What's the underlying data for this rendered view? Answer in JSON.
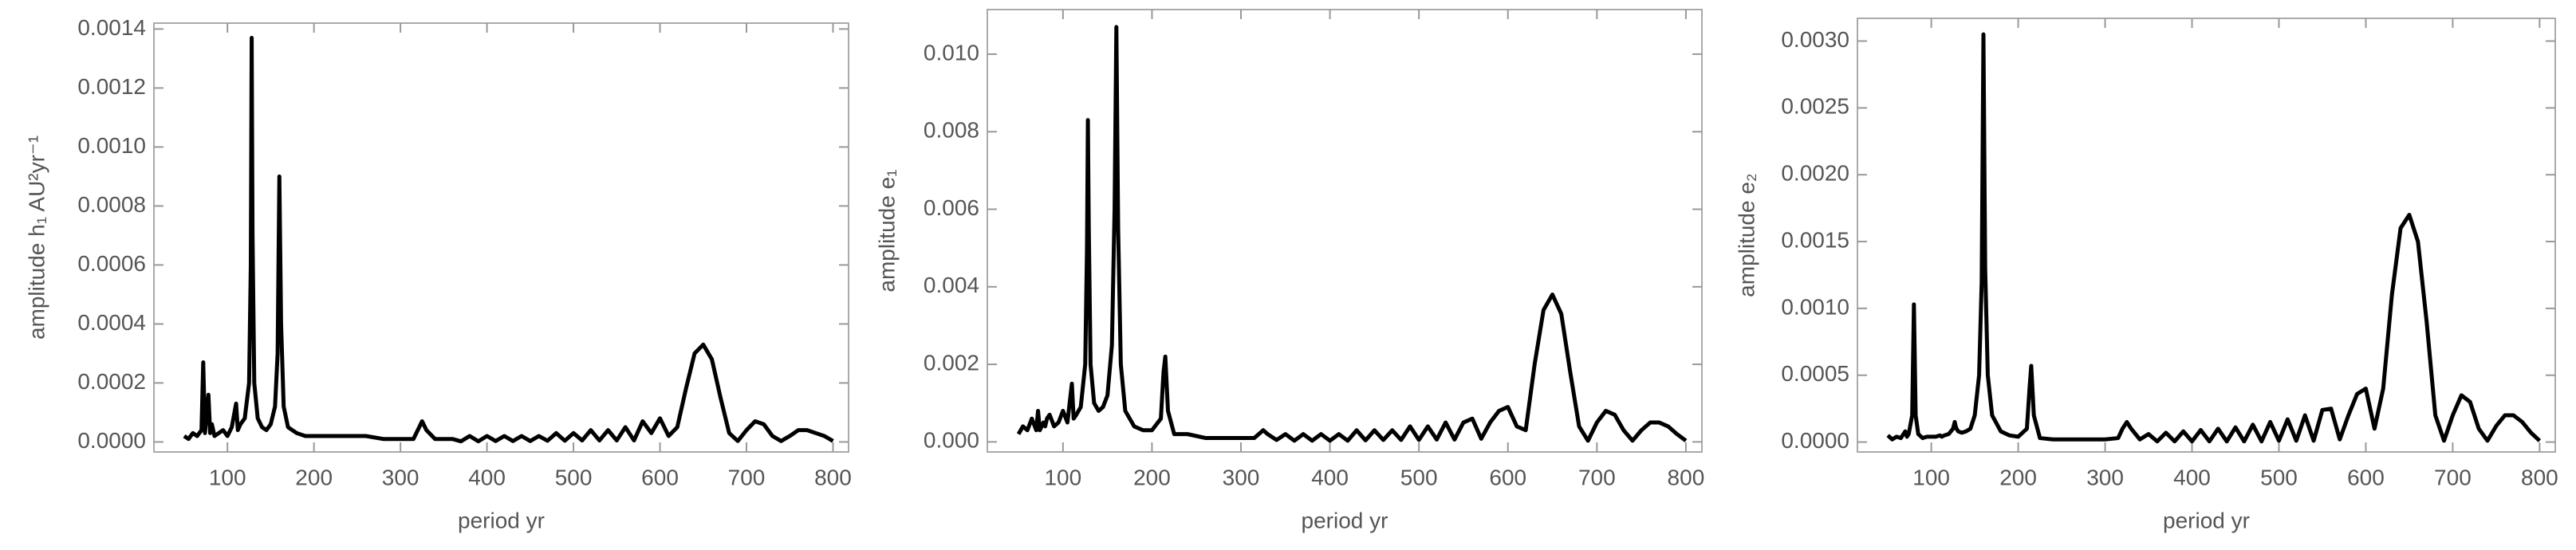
{
  "chart_data": [
    {
      "type": "line",
      "xlabel": "period yr",
      "ylabel": "amplitude h₁ AU²yr⁻¹",
      "xlim": [
        15,
        818
      ],
      "ylim": [
        -3.4e-05,
        0.00142
      ],
      "xticks": [
        100,
        200,
        300,
        400,
        500,
        600,
        700,
        800
      ],
      "yticks": [
        {
          "value": 0,
          "label": "0.0000"
        },
        {
          "value": 0.0002,
          "label": "0.0002"
        },
        {
          "value": 0.0004,
          "label": "0.0004"
        },
        {
          "value": 0.0006,
          "label": "0.0006"
        },
        {
          "value": 0.0008,
          "label": "0.0008"
        },
        {
          "value": 0.001,
          "label": "0.0010"
        },
        {
          "value": 0.0012,
          "label": "0.0012"
        },
        {
          "value": 0.0014,
          "label": "0.0014"
        }
      ],
      "color": "#000000",
      "x": [
        50,
        55,
        60,
        65,
        70,
        72,
        74,
        78,
        80,
        82,
        85,
        90,
        95,
        100,
        105,
        110,
        112,
        115,
        120,
        125,
        127,
        128,
        129,
        131,
        135,
        140,
        145,
        150,
        155,
        158,
        160,
        162,
        165,
        170,
        180,
        190,
        200,
        210,
        213,
        215,
        218,
        225,
        240,
        260,
        280,
        300,
        315,
        320,
        325,
        330,
        340,
        350,
        360,
        370,
        380,
        390,
        400,
        410,
        420,
        430,
        440,
        450,
        460,
        470,
        480,
        490,
        500,
        510,
        520,
        530,
        540,
        550,
        560,
        570,
        580,
        590,
        600,
        610,
        620,
        630,
        640,
        650,
        660,
        670,
        680,
        690,
        700,
        710,
        720,
        730,
        740,
        750,
        760,
        770,
        780,
        790,
        800
      ],
      "values": [
        2e-05,
        1e-05,
        3e-05,
        2e-05,
        4e-05,
        0.00027,
        3e-05,
        0.00016,
        3e-05,
        6e-05,
        2e-05,
        3e-05,
        4e-05,
        2e-05,
        5e-05,
        0.00013,
        4e-05,
        6e-05,
        8e-05,
        0.0002,
        0.0006,
        0.00137,
        0.0007,
        0.0002,
        8e-05,
        5e-05,
        4e-05,
        6e-05,
        0.00012,
        0.0003,
        0.0009,
        0.0004,
        0.00012,
        5e-05,
        3e-05,
        2e-05,
        2e-05,
        2e-05,
        2e-05,
        2e-05,
        2e-05,
        2e-05,
        2e-05,
        2e-05,
        1e-05,
        1e-05,
        1e-05,
        4e-05,
        7e-05,
        4e-05,
        1e-05,
        1e-05,
        1e-05,
        2e-06,
        2e-05,
        2e-06,
        2e-05,
        3e-06,
        2e-05,
        3e-06,
        2e-05,
        3e-06,
        2e-05,
        4e-06,
        3e-05,
        4e-06,
        3e-05,
        5e-06,
        4e-05,
        5e-06,
        4e-05,
        5e-06,
        5e-05,
        5e-06,
        7e-05,
        3e-05,
        8e-05,
        2e-05,
        5e-05,
        0.00018,
        0.0003,
        0.00033,
        0.00028,
        0.00015,
        3e-05,
        3e-06,
        4e-05,
        7e-05,
        6e-05,
        2e-05,
        3e-06,
        2e-05,
        4e-05,
        4e-05,
        3e-05,
        2e-05,
        3e-06
      ]
    },
    {
      "type": "line",
      "xlabel": "period yr",
      "ylabel": "amplitude e₁",
      "xlim": [
        15,
        818
      ],
      "ylim": [
        -0.00026,
        0.01115
      ],
      "xticks": [
        100,
        200,
        300,
        400,
        500,
        600,
        700,
        800
      ],
      "yticks": [
        {
          "value": 0,
          "label": "0.000"
        },
        {
          "value": 0.002,
          "label": "0.002"
        },
        {
          "value": 0.004,
          "label": "0.004"
        },
        {
          "value": 0.006,
          "label": "0.006"
        },
        {
          "value": 0.008,
          "label": "0.008"
        },
        {
          "value": 0.01,
          "label": "0.010"
        }
      ],
      "color": "#000000",
      "x": [
        50,
        55,
        60,
        65,
        70,
        72,
        74,
        78,
        80,
        82,
        85,
        90,
        95,
        100,
        105,
        110,
        112,
        115,
        120,
        125,
        127,
        128,
        129,
        131,
        135,
        140,
        145,
        150,
        155,
        158,
        160,
        162,
        165,
        170,
        180,
        190,
        200,
        210,
        213,
        215,
        218,
        225,
        240,
        260,
        280,
        300,
        315,
        320,
        325,
        330,
        340,
        350,
        360,
        370,
        380,
        390,
        400,
        410,
        420,
        430,
        440,
        450,
        460,
        470,
        480,
        490,
        500,
        510,
        520,
        530,
        540,
        550,
        560,
        570,
        580,
        590,
        600,
        610,
        620,
        630,
        640,
        650,
        660,
        670,
        680,
        690,
        700,
        710,
        720,
        730,
        740,
        750,
        760,
        770,
        780,
        790,
        800
      ],
      "values": [
        0.0002,
        0.0004,
        0.0003,
        0.0006,
        0.0003,
        0.0008,
        0.0003,
        0.0005,
        0.0004,
        0.0006,
        0.0007,
        0.0004,
        0.0005,
        0.0008,
        0.0005,
        0.0015,
        0.0006,
        0.0007,
        0.0009,
        0.002,
        0.005,
        0.0083,
        0.0055,
        0.002,
        0.001,
        0.0008,
        0.0009,
        0.0012,
        0.0025,
        0.006,
        0.0107,
        0.0055,
        0.002,
        0.0008,
        0.0004,
        0.0003,
        0.0003,
        0.0006,
        0.0018,
        0.0022,
        0.0008,
        0.0002,
        0.0002,
        0.0001,
        0.0001,
        0.0001,
        0.0001,
        0.0002,
        0.0003,
        0.0002,
        5e-05,
        0.0002,
        3e-05,
        0.0002,
        3e-05,
        0.0002,
        3e-05,
        0.0002,
        3e-05,
        0.0003,
        4e-05,
        0.0003,
        5e-05,
        0.0003,
        5e-05,
        0.0004,
        5e-05,
        0.0004,
        6e-05,
        0.0005,
        6e-05,
        0.0005,
        0.0006,
        8e-05,
        0.0005,
        0.0008,
        0.0009,
        0.0004,
        0.0003,
        0.002,
        0.0034,
        0.0038,
        0.0033,
        0.0018,
        0.0004,
        3e-05,
        0.0005,
        0.0008,
        0.0007,
        0.0003,
        3e-05,
        0.0003,
        0.0005,
        0.0005,
        0.0004,
        0.0002,
        3e-05
      ]
    },
    {
      "type": "line",
      "xlabel": "period yr",
      "ylabel": "amplitude e₂",
      "xlim": [
        15,
        818
      ],
      "ylim": [
        -7.4e-05,
        0.00317
      ],
      "xticks": [
        100,
        200,
        300,
        400,
        500,
        600,
        700,
        800
      ],
      "yticks": [
        {
          "value": 0,
          "label": "0.0000"
        },
        {
          "value": 0.0005,
          "label": "0.0005"
        },
        {
          "value": 0.001,
          "label": "0.0010"
        },
        {
          "value": 0.0015,
          "label": "0.0015"
        },
        {
          "value": 0.002,
          "label": "0.0020"
        },
        {
          "value": 0.0025,
          "label": "0.0025"
        },
        {
          "value": 0.003,
          "label": "0.0030"
        }
      ],
      "color": "#000000",
      "x": [
        50,
        55,
        60,
        65,
        70,
        72,
        74,
        78,
        80,
        82,
        85,
        90,
        95,
        100,
        105,
        110,
        112,
        115,
        120,
        125,
        127,
        128,
        129,
        131,
        135,
        140,
        145,
        150,
        155,
        158,
        160,
        162,
        165,
        170,
        180,
        190,
        200,
        210,
        213,
        215,
        218,
        225,
        240,
        260,
        280,
        300,
        315,
        320,
        325,
        330,
        340,
        350,
        360,
        370,
        380,
        390,
        400,
        410,
        420,
        430,
        440,
        450,
        460,
        470,
        480,
        490,
        500,
        510,
        520,
        530,
        540,
        550,
        560,
        570,
        580,
        590,
        600,
        610,
        620,
        630,
        640,
        650,
        660,
        670,
        680,
        690,
        700,
        710,
        720,
        730,
        740,
        750,
        760,
        770,
        780,
        790,
        800
      ],
      "values": [
        5e-05,
        2e-05,
        4e-05,
        3e-05,
        8e-05,
        4e-05,
        6e-05,
        0.0002,
        0.00103,
        0.0002,
        6e-05,
        3e-05,
        4e-05,
        4e-05,
        4e-05,
        5e-05,
        4e-05,
        5e-05,
        6e-05,
        0.0001,
        0.00015,
        0.00012,
        0.0001,
        8e-05,
        7e-05,
        8e-05,
        0.0001,
        0.0002,
        0.0005,
        0.0012,
        0.00305,
        0.0013,
        0.0005,
        0.0002,
        8e-05,
        5e-05,
        4e-05,
        0.0001,
        0.0004,
        0.00057,
        0.0002,
        3e-05,
        2e-05,
        2e-05,
        2e-05,
        2e-05,
        3e-05,
        0.0001,
        0.00015,
        0.0001,
        2e-05,
        6e-05,
        5e-06,
        7e-05,
        5e-06,
        8e-05,
        5e-06,
        9e-05,
        5e-06,
        0.0001,
        5e-06,
        0.00011,
        5e-06,
        0.00013,
        5e-06,
        0.00015,
        1e-05,
        0.00017,
        1e-05,
        0.0002,
        1e-05,
        0.00024,
        0.00025,
        2e-05,
        0.0002,
        0.00036,
        0.0004,
        0.0001,
        0.0004,
        0.0011,
        0.0016,
        0.0017,
        0.0015,
        0.0009,
        0.0002,
        1e-05,
        0.0002,
        0.00035,
        0.0003,
        0.0001,
        1e-05,
        0.00012,
        0.0002,
        0.0002,
        0.00015,
        7e-05,
        1e-05
      ]
    }
  ]
}
